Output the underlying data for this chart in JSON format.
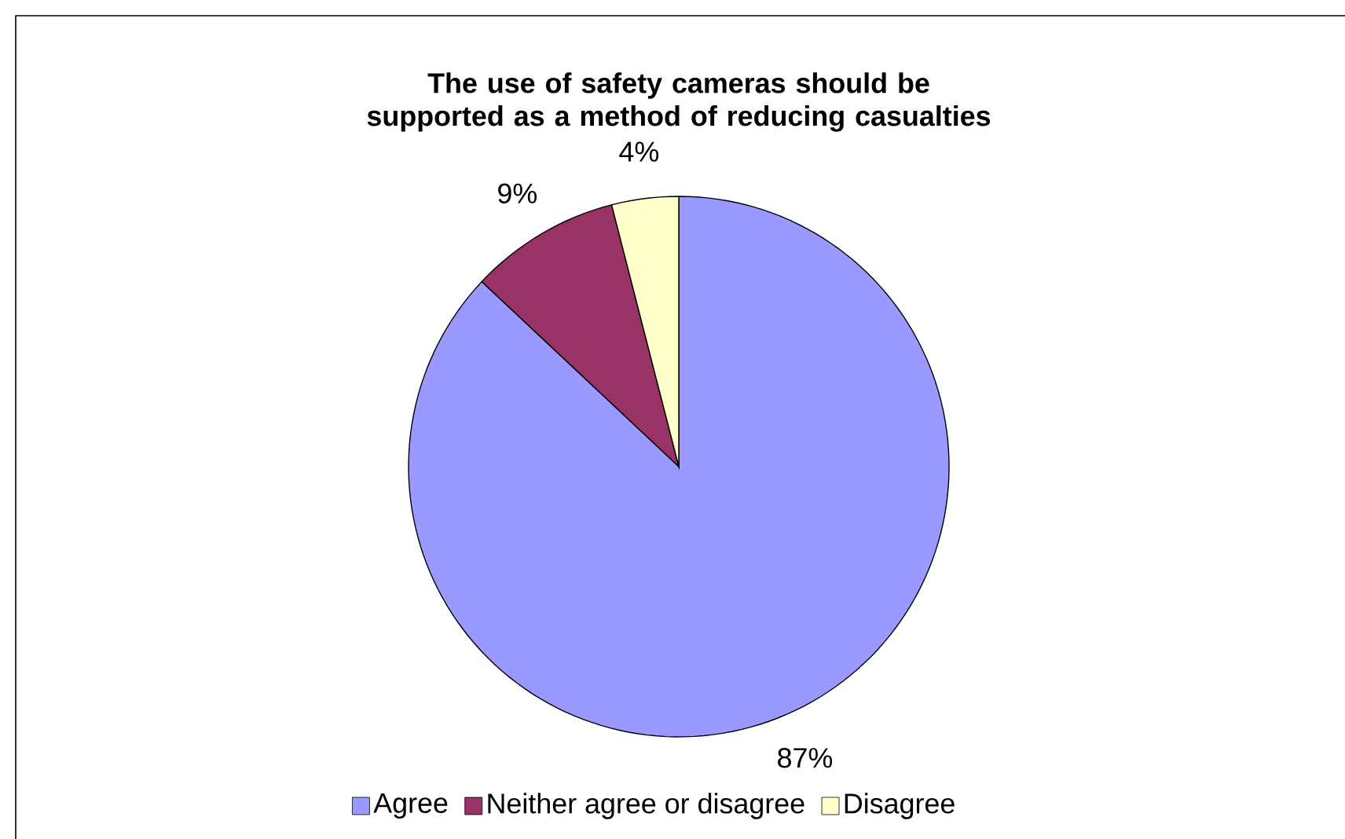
{
  "chart_data": {
    "type": "pie",
    "title": "The use of safety cameras should be supported as a method of reducing casualties",
    "categories": [
      "Agree",
      "Neither agree or disagree",
      "Disagree"
    ],
    "values": [
      87,
      9,
      4
    ],
    "colors": [
      "#9999ff",
      "#993366",
      "#ffffcc"
    ],
    "value_labels": [
      "87%",
      "9%",
      "4%"
    ],
    "legend": "bottom"
  }
}
